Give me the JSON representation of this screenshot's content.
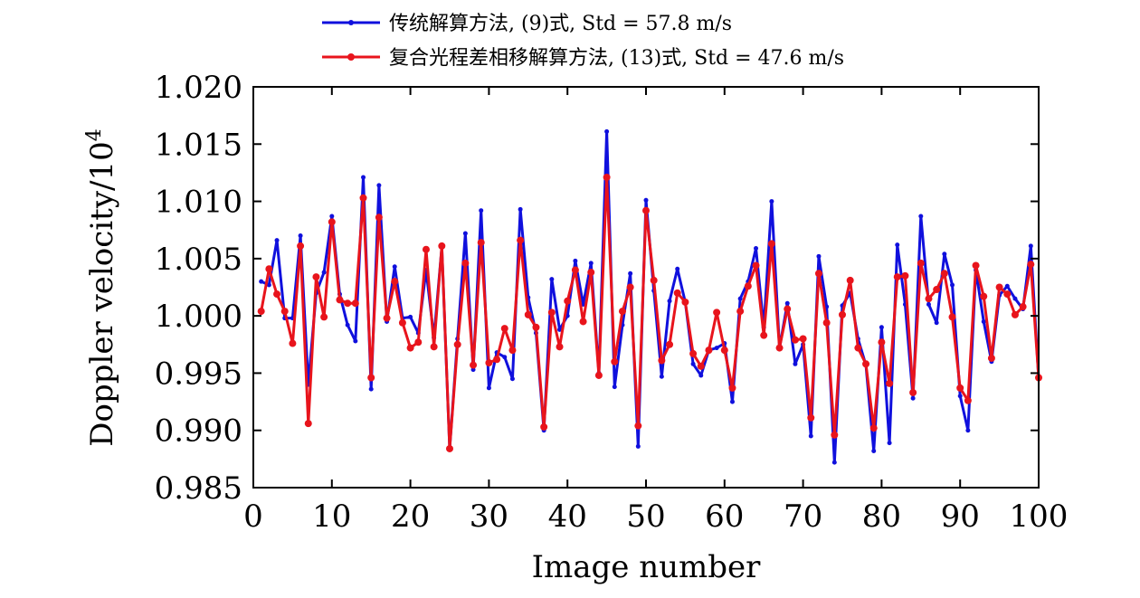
{
  "chart_data": {
    "type": "line",
    "xlabel": "Image number",
    "ylabel": "Doppler velocity/10",
    "ylabel_sup": "4",
    "xlim": [
      0,
      100
    ],
    "ylim": [
      0.985,
      1.02
    ],
    "x_ticks": [
      0,
      10,
      20,
      30,
      40,
      50,
      60,
      70,
      80,
      90,
      100
    ],
    "x_tick_labels": [
      "0",
      "10",
      "20",
      "30",
      "40",
      "50",
      "60",
      "70",
      "80",
      "90",
      "100"
    ],
    "y_ticks": [
      0.985,
      0.99,
      0.995,
      1.0,
      1.005,
      1.01,
      1.015,
      1.02
    ],
    "y_tick_labels": [
      "0.985",
      "0.990",
      "0.995",
      "1.000",
      "1.005",
      "1.010",
      "1.015",
      "1.020"
    ],
    "legend_position": "top-center",
    "grid": false,
    "x": [
      1,
      2,
      3,
      4,
      5,
      6,
      7,
      8,
      9,
      10,
      11,
      12,
      13,
      14,
      15,
      16,
      17,
      18,
      19,
      20,
      21,
      22,
      23,
      24,
      25,
      26,
      27,
      28,
      29,
      30,
      31,
      32,
      33,
      34,
      35,
      36,
      37,
      38,
      39,
      40,
      41,
      42,
      43,
      44,
      45,
      46,
      47,
      48,
      49,
      50,
      51,
      52,
      53,
      54,
      55,
      56,
      57,
      58,
      59,
      60,
      61,
      62,
      63,
      64,
      65,
      66,
      67,
      68,
      69,
      70,
      71,
      72,
      73,
      74,
      75,
      76,
      77,
      78,
      79,
      80,
      81,
      82,
      83,
      84,
      85,
      86,
      87,
      88,
      89,
      90,
      91,
      92,
      93,
      94,
      95,
      96,
      97,
      98,
      99,
      100
    ],
    "series": [
      {
        "name": "传统解算方法, (9)式, Std = 57.8 m/s",
        "color": "#1010dd",
        "values": [
          1.003,
          1.0027,
          1.0066,
          0.9998,
          0.9998,
          1.007,
          0.994,
          1.002,
          1.0038,
          1.0087,
          1.0019,
          0.9992,
          0.9978,
          1.0121,
          0.9936,
          1.0114,
          0.9995,
          1.0043,
          0.9998,
          0.9999,
          0.9985,
          1.004,
          0.9981,
          1.006,
          0.9884,
          0.998,
          1.0072,
          0.9953,
          1.0092,
          0.9937,
          0.9968,
          0.9964,
          0.9945,
          1.0093,
          1.0016,
          0.9985,
          0.99,
          1.0032,
          0.9988,
          1.0,
          1.0048,
          1.001,
          1.0046,
          0.995,
          1.0161,
          0.9938,
          0.9992,
          1.0037,
          0.9886,
          1.0101,
          1.0022,
          0.9947,
          1.0013,
          1.0041,
          1.0012,
          0.9958,
          0.9948,
          0.997,
          0.9972,
          0.9976,
          0.9925,
          1.0015,
          1.003,
          1.0059,
          0.999,
          1.01,
          0.9972,
          1.0011,
          0.9958,
          0.9975,
          0.9895,
          1.0052,
          1.0008,
          0.9872,
          1.0009,
          1.002,
          0.998,
          0.9957,
          0.9882,
          0.999,
          0.9889,
          1.0062,
          1.001,
          0.9928,
          1.0087,
          1.001,
          0.9994,
          1.0054,
          1.0027,
          0.993,
          0.99,
          1.004,
          0.9995,
          0.996,
          1.0018,
          1.0026,
          1.0015,
          1.0006,
          1.0061,
          0.9945
        ]
      },
      {
        "name": "复合光程差相移解算方法, (13)式, Std = 47.6 m/s",
        "color": "#e8141c",
        "values": [
          1.0004,
          1.0041,
          1.0019,
          1.0004,
          0.9976,
          1.0061,
          0.9906,
          1.0034,
          0.9999,
          1.0082,
          1.0014,
          1.0011,
          1.0011,
          1.0103,
          0.9946,
          1.0086,
          0.9998,
          1.003,
          0.9994,
          0.9972,
          0.9977,
          1.0058,
          0.9973,
          1.0061,
          0.9884,
          0.9975,
          1.0046,
          0.9957,
          1.0064,
          0.9959,
          0.9962,
          0.9989,
          0.997,
          1.0066,
          1.0001,
          0.999,
          0.9903,
          1.0003,
          0.9973,
          1.0013,
          1.004,
          0.9995,
          1.0038,
          0.9948,
          1.0121,
          0.996,
          1.0004,
          1.0025,
          0.9904,
          1.0092,
          1.0031,
          0.9961,
          0.9975,
          1.002,
          1.0012,
          0.9967,
          0.9956,
          0.997,
          1.0003,
          0.997,
          0.9937,
          1.0004,
          1.0026,
          1.0044,
          0.9983,
          1.0063,
          0.9972,
          1.0006,
          0.9979,
          0.998,
          0.9911,
          1.0037,
          0.9994,
          0.9896,
          1.0001,
          1.0031,
          0.9972,
          0.9958,
          0.9902,
          0.9977,
          0.9941,
          1.0034,
          1.0035,
          0.9933,
          1.0046,
          1.0015,
          1.0023,
          1.0037,
          0.9999,
          0.9937,
          0.9926,
          1.0044,
          1.0017,
          0.9963,
          1.0025,
          1.0019,
          1.0001,
          1.0008,
          1.0045,
          0.9946
        ]
      }
    ]
  }
}
